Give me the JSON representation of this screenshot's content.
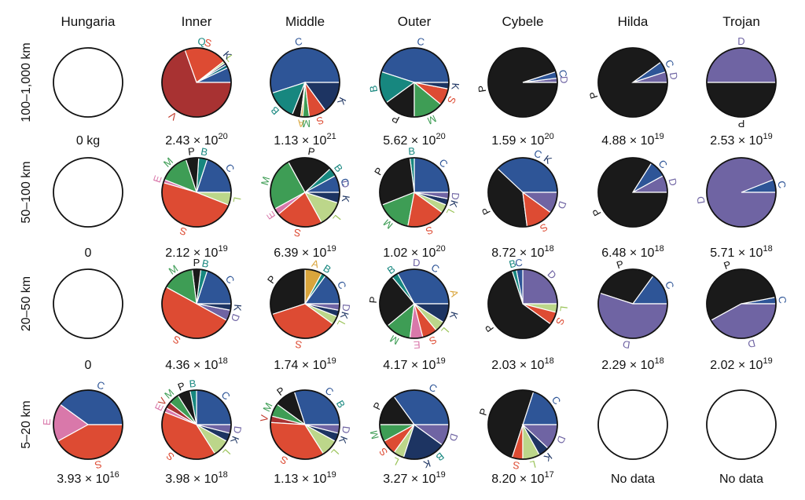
{
  "chart_data": {
    "type": "pie",
    "title": "",
    "columns": [
      "Hungaria",
      "Inner",
      "Middle",
      "Outer",
      "Cybele",
      "Hilda",
      "Trojan"
    ],
    "rows": [
      "100–1,000 km",
      "50–100 km",
      "20–50 km",
      "5–20 km"
    ],
    "class_colors": {
      "C": "#2e5597",
      "B": "#17877f",
      "P": "#1a1a1a",
      "D": "#6f64a3",
      "S": "#dd4b33",
      "V": "#a83232",
      "K": "#1d3462",
      "L": "#bcd68a",
      "M": "#3e9d55",
      "E": "#d978aa",
      "A": "#d9a53c",
      "X": "#0f6f80"
    },
    "label_colors": {
      "C": "#2e5597",
      "B": "#17877f",
      "P": "#111111",
      "D": "#6f64a3",
      "S": "#dd4b33",
      "V": "#c0392b",
      "K": "#1d3462",
      "L": "#9bc45a",
      "M": "#3e9d55",
      "E": "#d978aa",
      "A": "#d9a53c",
      "Q": "#17877f"
    },
    "cells": [
      [
        {
          "mass": {
            "text": "0 kg"
          },
          "slices": []
        },
        {
          "mass": {
            "base": "2.43 × 10",
            "exp": "20"
          },
          "slices": [
            {
              "c": "C",
              "v": 7
            },
            {
              "c": "X",
              "v": 1.5
            },
            {
              "c": "K",
              "v": 1
            },
            {
              "c": "L",
              "v": 1
            },
            {
              "c": "S",
              "v": 20
            },
            {
              "c": "V",
              "v": 69.5
            }
          ],
          "labels": [
            "S",
            "L",
            "K",
            "Q",
            "V"
          ]
        },
        {
          "mass": {
            "base": "1.13 × 10",
            "exp": "21"
          },
          "slices": [
            {
              "c": "C",
              "v": 55
            },
            {
              "c": "B",
              "v": 14
            },
            {
              "c": "P",
              "v": 4
            },
            {
              "c": "A",
              "v": 1
            },
            {
              "c": "M",
              "v": 3
            },
            {
              "c": "S",
              "v": 8
            },
            {
              "c": "K",
              "v": 15
            }
          ],
          "labels": [
            "B",
            "A",
            "M",
            "S",
            "K",
            "C"
          ]
        },
        {
          "mass": {
            "base": "5.62 × 10",
            "exp": "20"
          },
          "slices": [
            {
              "c": "C",
              "v": 45
            },
            {
              "c": "B",
              "v": 15
            },
            {
              "c": "P",
              "v": 15
            },
            {
              "c": "M",
              "v": 14
            },
            {
              "c": "S",
              "v": 8
            },
            {
              "c": "K",
              "v": 3
            }
          ],
          "labels": [
            "C",
            "B",
            "P",
            "M",
            "S",
            "K"
          ]
        },
        {
          "mass": {
            "base": "1.59 × 10",
            "exp": "20"
          },
          "slices": [
            {
              "c": "D",
              "v": 2
            },
            {
              "c": "C",
              "v": 3
            },
            {
              "c": "P",
              "v": 95
            }
          ],
          "labels": [
            "D",
            "C",
            "P"
          ]
        },
        {
          "mass": {
            "base": "4.88 × 10",
            "exp": "19"
          },
          "slices": [
            {
              "c": "D",
              "v": 5
            },
            {
              "c": "C",
              "v": 5
            },
            {
              "c": "P",
              "v": 90
            }
          ],
          "labels": [
            "D",
            "C",
            "P"
          ]
        },
        {
          "mass": {
            "base": "2.53 × 10",
            "exp": "19"
          },
          "slices": [
            {
              "c": "D",
              "v": 50
            },
            {
              "c": "P",
              "v": 50
            }
          ],
          "labels": [
            "D",
            "P"
          ]
        }
      ],
      [
        {
          "mass": {
            "text": "0"
          },
          "slices": []
        },
        {
          "mass": {
            "base": "2.12 × 10",
            "exp": "19"
          },
          "slices": [
            {
              "c": "C",
              "v": 20
            },
            {
              "c": "B",
              "v": 4
            },
            {
              "c": "P",
              "v": 6
            },
            {
              "c": "M",
              "v": 14
            },
            {
              "c": "E",
              "v": 1.5
            },
            {
              "c": "S",
              "v": 48.5
            },
            {
              "c": "L",
              "v": 6
            }
          ],
          "labels": [
            "L",
            "C",
            "B",
            "P",
            "M",
            "E",
            "S"
          ]
        },
        {
          "mass": {
            "base": "6.39 × 10",
            "exp": "19"
          },
          "slices": [
            {
              "c": "C",
              "v": 8
            },
            {
              "c": "B",
              "v": 4
            },
            {
              "c": "P",
              "v": 21
            },
            {
              "c": "M",
              "v": 25
            },
            {
              "c": "E",
              "v": 3
            },
            {
              "c": "S",
              "v": 22
            },
            {
              "c": "L",
              "v": 12
            },
            {
              "c": "K",
              "v": 5
            }
          ],
          "labels": [
            "K",
            "D",
            "C",
            "B",
            "P",
            "M",
            "E",
            "S",
            "L"
          ]
        },
        {
          "mass": {
            "base": "1.02 × 10",
            "exp": "20"
          },
          "slices": [
            {
              "c": "C",
              "v": 25
            },
            {
              "c": "B",
              "v": 2
            },
            {
              "c": "P",
              "v": 29
            },
            {
              "c": "M",
              "v": 16
            },
            {
              "c": "S",
              "v": 18
            },
            {
              "c": "L",
              "v": 4
            },
            {
              "c": "K",
              "v": 3
            },
            {
              "c": "D",
              "v": 3
            }
          ],
          "labels": [
            "C",
            "B",
            "P",
            "M",
            "S",
            "L",
            "K",
            "D"
          ]
        },
        {
          "mass": {
            "base": "8.72 × 10",
            "exp": "18"
          },
          "slices": [
            {
              "c": "C",
              "v": 38
            },
            {
              "c": "P",
              "v": 39
            },
            {
              "c": "S",
              "v": 13
            },
            {
              "c": "D",
              "v": 10
            }
          ],
          "labels": [
            "C",
            "P",
            "S",
            "K",
            "D"
          ]
        },
        {
          "mass": {
            "base": "6.48 × 10",
            "exp": "18"
          },
          "slices": [
            {
              "c": "D",
              "v": 8
            },
            {
              "c": "C",
              "v": 8
            },
            {
              "c": "P",
              "v": 84
            }
          ],
          "labels": [
            "D",
            "C",
            "P"
          ]
        },
        {
          "mass": {
            "base": "5.71 × 10",
            "exp": "18"
          },
          "slices": [
            {
              "c": "C",
              "v": 6
            },
            {
              "c": "D",
              "v": 94
            }
          ],
          "labels": [
            "C",
            "D"
          ]
        }
      ],
      [
        {
          "mass": {
            "text": "0"
          },
          "slices": []
        },
        {
          "mass": {
            "base": "4.36 × 10",
            "exp": "18"
          },
          "slices": [
            {
              "c": "C",
              "v": 20
            },
            {
              "c": "B",
              "v": 3
            },
            {
              "c": "P",
              "v": 4
            },
            {
              "c": "M",
              "v": 15
            },
            {
              "c": "S",
              "v": 50
            },
            {
              "c": "D",
              "v": 5
            },
            {
              "c": "K",
              "v": 3
            }
          ],
          "labels": [
            "K",
            "D",
            "C",
            "B",
            "P",
            "M",
            "S"
          ]
        },
        {
          "mass": {
            "base": "1.74 × 10",
            "exp": "19"
          },
          "slices": [
            {
              "c": "C",
              "v": 15
            },
            {
              "c": "B",
              "v": 2
            },
            {
              "c": "A",
              "v": 8
            },
            {
              "c": "P",
              "v": 30
            },
            {
              "c": "S",
              "v": 35
            },
            {
              "c": "L",
              "v": 4
            },
            {
              "c": "K",
              "v": 3
            },
            {
              "c": "D",
              "v": 3
            }
          ],
          "labels": [
            "L",
            "K",
            "D",
            "C",
            "B",
            "A",
            "P",
            "S"
          ]
        },
        {
          "mass": {
            "base": "4.17 × 10",
            "exp": "19"
          },
          "slices": [
            {
              "c": "C",
              "v": 33
            },
            {
              "c": "B",
              "v": 3
            },
            {
              "c": "P",
              "v": 25
            },
            {
              "c": "M",
              "v": 12
            },
            {
              "c": "E",
              "v": 6
            },
            {
              "c": "S",
              "v": 7
            },
            {
              "c": "L",
              "v": 5
            },
            {
              "c": "K",
              "v": 9
            }
          ],
          "labels": [
            "C",
            "B",
            "A",
            "P",
            "M",
            "E",
            "S",
            "L",
            "K",
            "D"
          ]
        },
        {
          "mass": {
            "base": "2.03 × 10",
            "exp": "18"
          },
          "slices": [
            {
              "c": "D",
              "v": 25
            },
            {
              "c": "C",
              "v": 3
            },
            {
              "c": "B",
              "v": 2
            },
            {
              "c": "P",
              "v": 60
            },
            {
              "c": "S",
              "v": 6
            },
            {
              "c": "L",
              "v": 4
            }
          ],
          "labels": [
            "S",
            "L",
            "D",
            "C",
            "B",
            "P"
          ]
        },
        {
          "mass": {
            "base": "2.29 × 10",
            "exp": "18"
          },
          "slices": [
            {
              "c": "C",
              "v": 15
            },
            {
              "c": "P",
              "v": 30
            },
            {
              "c": "D",
              "v": 55
            }
          ],
          "labels": [
            "D",
            "C",
            "P"
          ]
        },
        {
          "mass": {
            "base": "2.02 × 10",
            "exp": "19"
          },
          "slices": [
            {
              "c": "C",
              "v": 3
            },
            {
              "c": "P",
              "v": 55
            },
            {
              "c": "D",
              "v": 42
            }
          ],
          "labels": [
            "D",
            "C",
            "P"
          ]
        }
      ],
      [
        {
          "mass": {
            "base": "3.93 × 10",
            "exp": "16"
          },
          "slices": [
            {
              "c": "C",
              "v": 40
            },
            {
              "c": "E",
              "v": 18
            },
            {
              "c": "S",
              "v": 42
            }
          ],
          "labels": [
            "C",
            "E",
            "S"
          ]
        },
        {
          "mass": {
            "base": "3.98 × 10",
            "exp": "18"
          },
          "slices": [
            {
              "c": "C",
              "v": 25
            },
            {
              "c": "B",
              "v": 3
            },
            {
              "c": "P",
              "v": 6
            },
            {
              "c": "M",
              "v": 5
            },
            {
              "c": "V",
              "v": 3
            },
            {
              "c": "E",
              "v": 2
            },
            {
              "c": "S",
              "v": 40
            },
            {
              "c": "L",
              "v": 8
            },
            {
              "c": "K",
              "v": 4
            },
            {
              "c": "D",
              "v": 4
            }
          ],
          "labels": [
            "K",
            "D",
            "C",
            "B",
            "P",
            "M",
            "V",
            "E",
            "S",
            "L"
          ]
        },
        {
          "mass": {
            "base": "1.13 × 10",
            "exp": "19"
          },
          "slices": [
            {
              "c": "C",
              "v": 30
            },
            {
              "c": "P",
              "v": 10
            },
            {
              "c": "M",
              "v": 6
            },
            {
              "c": "V",
              "v": 3
            },
            {
              "c": "S",
              "v": 35
            },
            {
              "c": "L",
              "v": 8
            },
            {
              "c": "K",
              "v": 4
            },
            {
              "c": "D",
              "v": 4
            }
          ],
          "labels": [
            "L",
            "K",
            "D",
            "C",
            "B",
            "P",
            "M",
            "V",
            "S"
          ]
        },
        {
          "mass": {
            "base": "3.27 × 10",
            "exp": "19"
          },
          "slices": [
            {
              "c": "C",
              "v": 35
            },
            {
              "c": "P",
              "v": 15
            },
            {
              "c": "M",
              "v": 8
            },
            {
              "c": "S",
              "v": 7
            },
            {
              "c": "L",
              "v": 5
            },
            {
              "c": "K",
              "v": 20
            },
            {
              "c": "D",
              "v": 10
            }
          ],
          "labels": [
            "C",
            "B",
            "P",
            "M",
            "S",
            "L",
            "K",
            "D"
          ]
        },
        {
          "mass": {
            "base": "8.20 × 10",
            "exp": "17"
          },
          "slices": [
            {
              "c": "C",
              "v": 20
            },
            {
              "c": "P",
              "v": 50
            },
            {
              "c": "S",
              "v": 5
            },
            {
              "c": "L",
              "v": 8
            },
            {
              "c": "K",
              "v": 5
            },
            {
              "c": "D",
              "v": 12
            }
          ],
          "labels": [
            "D",
            "C",
            "P",
            "S",
            "L",
            "K"
          ]
        },
        {
          "mass": {
            "text": "No data"
          },
          "slices": []
        },
        {
          "mass": {
            "text": "No data"
          },
          "slices": []
        }
      ]
    ]
  }
}
